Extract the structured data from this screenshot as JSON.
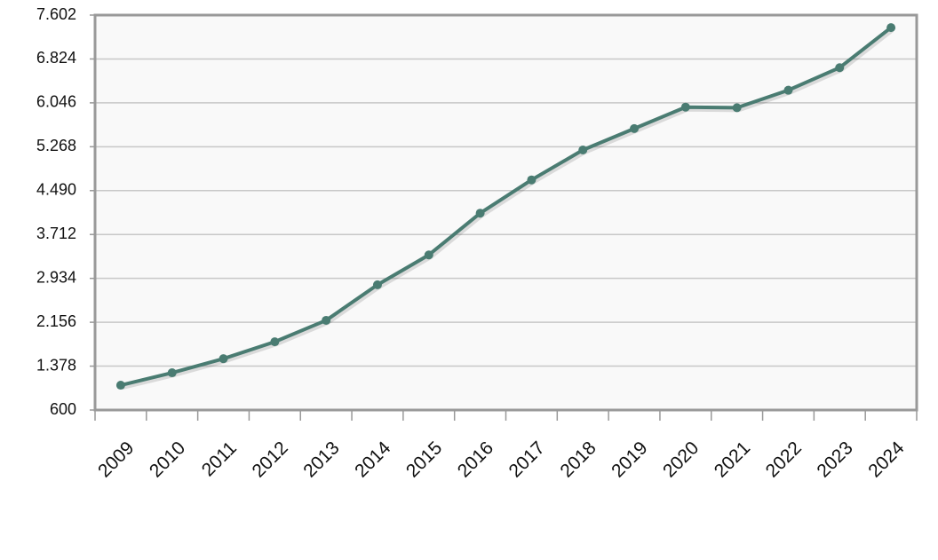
{
  "chart_data": {
    "type": "line",
    "categories": [
      "2009",
      "2010",
      "2011",
      "2012",
      "2013",
      "2014",
      "2015",
      "2016",
      "2017",
      "2018",
      "2019",
      "2020",
      "2021",
      "2022",
      "2023",
      "2024"
    ],
    "values": [
      1040,
      1260,
      1510,
      1810,
      2190,
      2820,
      3350,
      4090,
      4680,
      5210,
      5590,
      5970,
      5960,
      6270,
      6670,
      7380
    ],
    "color": "#4a7c72",
    "ylim": [
      600,
      7602
    ],
    "yticks": [
      600,
      {
        "value": 1378,
        "label": "1.378"
      },
      {
        "value": 2156,
        "label": "2.156"
      },
      {
        "value": 2934,
        "label": "2.934"
      },
      {
        "value": 3712,
        "label": "3.712"
      },
      {
        "value": 4490,
        "label": "4.490"
      },
      {
        "value": 5268,
        "label": "5.268"
      },
      {
        "value": 6046,
        "label": "6.046"
      },
      {
        "value": 6824,
        "label": "6.824"
      },
      {
        "value": 7602,
        "label": "7.602"
      }
    ],
    "grid": true
  }
}
